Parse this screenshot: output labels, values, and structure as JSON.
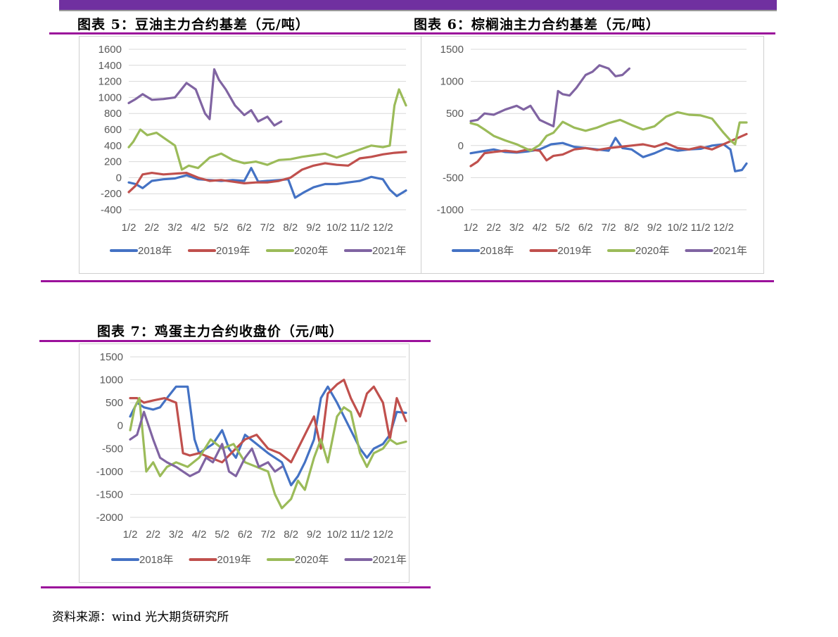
{
  "source": "资料来源：wind 光大期货研究所",
  "colors": {
    "2018": "#4472c4",
    "2019": "#c0504d",
    "2020": "#9bbb59",
    "2021": "#8064a2"
  },
  "chart_data": [
    {
      "id": "fig5",
      "type": "line",
      "title": "图表 5：豆油主力合约基差（元/吨）",
      "categories": [
        "1/2",
        "2/2",
        "3/2",
        "4/2",
        "5/2",
        "6/2",
        "7/2",
        "8/2",
        "9/2",
        "10/2",
        "11/2",
        "12/2"
      ],
      "ylim": [
        -400,
        1600
      ],
      "yticks": [
        1600,
        1400,
        1200,
        1000,
        800,
        600,
        400,
        200,
        0,
        -200,
        -400
      ],
      "grid": true,
      "legend": "bottom",
      "series": [
        {
          "name": "2018年",
          "x": [
            0,
            0.3,
            0.6,
            1,
            1.5,
            2,
            2.5,
            3,
            3.5,
            4,
            4.5,
            5,
            5.3,
            5.6,
            6,
            6.5,
            6.9,
            7.2,
            7.6,
            8,
            8.5,
            9,
            9.5,
            10,
            10.5,
            11,
            11.3,
            11.6,
            12
          ],
          "values": [
            -60,
            -80,
            -130,
            -40,
            -20,
            -10,
            30,
            -20,
            -30,
            -40,
            -30,
            -40,
            120,
            -50,
            -40,
            -30,
            -20,
            -250,
            -180,
            -120,
            -80,
            -80,
            -60,
            -40,
            10,
            -20,
            -150,
            -230,
            -160
          ]
        },
        {
          "name": "2019年",
          "x": [
            0,
            0.3,
            0.6,
            1,
            1.5,
            2,
            2.5,
            3,
            3.5,
            4,
            4.5,
            5,
            5.5,
            6,
            6.5,
            7,
            7.5,
            8,
            8.5,
            9,
            9.5,
            10,
            10.5,
            11,
            11.5,
            12
          ],
          "values": [
            -180,
            -100,
            40,
            60,
            40,
            50,
            60,
            0,
            -40,
            -30,
            -50,
            -70,
            -60,
            -60,
            -40,
            0,
            100,
            150,
            180,
            160,
            150,
            240,
            260,
            290,
            310,
            320
          ]
        },
        {
          "name": "2020年",
          "x": [
            0,
            0.2,
            0.5,
            0.8,
            1.2,
            1.6,
            2,
            2.3,
            2.6,
            3,
            3.5,
            4,
            4.5,
            5,
            5.5,
            6,
            6.5,
            7,
            7.5,
            8,
            8.5,
            9,
            9.5,
            10,
            10.5,
            11,
            11.3,
            11.5,
            11.7,
            12
          ],
          "values": [
            380,
            450,
            600,
            530,
            560,
            480,
            400,
            100,
            150,
            120,
            250,
            300,
            220,
            180,
            200,
            160,
            220,
            230,
            260,
            280,
            300,
            250,
            300,
            350,
            400,
            380,
            400,
            900,
            1100,
            900
          ]
        },
        {
          "name": "2021年",
          "x": [
            0,
            0.3,
            0.6,
            1,
            1.5,
            2,
            2.5,
            2.9,
            3.3,
            3.5,
            3.7,
            3.9,
            4.2,
            4.6,
            5,
            5.3,
            5.6,
            6,
            6.3,
            6.6
          ],
          "values": [
            930,
            980,
            1040,
            970,
            980,
            1000,
            1180,
            1100,
            800,
            730,
            1350,
            1220,
            1100,
            900,
            780,
            840,
            700,
            760,
            650,
            700
          ]
        }
      ]
    },
    {
      "id": "fig6",
      "type": "line",
      "title": "图表 6：棕榈油主力合约基差（元/吨）",
      "categories": [
        "1/2",
        "2/2",
        "3/2",
        "4/2",
        "5/2",
        "6/2",
        "7/2",
        "8/2",
        "9/2",
        "10/2",
        "11/2",
        "12/2"
      ],
      "ylim": [
        -1000,
        1500
      ],
      "yticks": [
        1500,
        1000,
        500,
        0,
        -500,
        -1000
      ],
      "grid": true,
      "legend": "bottom",
      "series": [
        {
          "name": "2018年",
          "x": [
            0,
            0.5,
            1,
            1.5,
            2,
            2.5,
            3,
            3.5,
            4,
            4.5,
            5,
            5.5,
            6,
            6.3,
            6.6,
            7,
            7.5,
            8,
            8.5,
            9,
            9.5,
            10,
            10.5,
            11,
            11.3,
            11.5,
            11.8,
            12
          ],
          "values": [
            -120,
            -90,
            -60,
            -100,
            -110,
            -90,
            -60,
            20,
            40,
            -20,
            -40,
            -60,
            -80,
            120,
            -40,
            -60,
            -180,
            -120,
            -40,
            -80,
            -60,
            -50,
            0,
            20,
            -60,
            -400,
            -380,
            -280
          ]
        },
        {
          "name": "2019年",
          "x": [
            0,
            0.3,
            0.6,
            1,
            1.5,
            2,
            2.5,
            3,
            3.3,
            3.6,
            4,
            4.5,
            5,
            5.5,
            6,
            6.5,
            7,
            7.5,
            8,
            8.5,
            9,
            9.5,
            10,
            10.5,
            11,
            11.5,
            12
          ],
          "values": [
            -320,
            -250,
            -120,
            -100,
            -80,
            -100,
            -60,
            -80,
            -230,
            -160,
            -140,
            -60,
            -40,
            -70,
            -40,
            -20,
            0,
            20,
            -20,
            40,
            -40,
            -60,
            -20,
            -60,
            20,
            100,
            180
          ]
        },
        {
          "name": "2020年",
          "x": [
            0,
            0.3,
            0.6,
            1,
            1.5,
            2,
            2.3,
            2.6,
            3,
            3.3,
            3.6,
            4,
            4.5,
            5,
            5.5,
            6,
            6.5,
            7,
            7.5,
            8,
            8.5,
            9,
            9.5,
            10,
            10.5,
            11,
            11.3,
            11.5,
            11.7,
            12
          ],
          "values": [
            350,
            320,
            250,
            150,
            80,
            20,
            -30,
            -80,
            10,
            150,
            200,
            370,
            280,
            230,
            280,
            350,
            400,
            320,
            250,
            300,
            450,
            520,
            480,
            470,
            420,
            200,
            80,
            20,
            360,
            360
          ]
        },
        {
          "name": "2021年",
          "x": [
            0,
            0.3,
            0.6,
            1,
            1.5,
            2,
            2.3,
            2.6,
            3,
            3.3,
            3.6,
            3.8,
            4,
            4.3,
            4.6,
            5,
            5.3,
            5.6,
            6,
            6.3,
            6.6,
            6.9
          ],
          "values": [
            380,
            400,
            500,
            480,
            560,
            620,
            560,
            620,
            400,
            350,
            300,
            850,
            800,
            780,
            900,
            1100,
            1150,
            1250,
            1200,
            1080,
            1100,
            1200
          ]
        }
      ]
    },
    {
      "id": "fig7",
      "type": "line",
      "title": "图表 7：鸡蛋主力合约收盘价（元/吨）",
      "categories": [
        "1/2",
        "2/2",
        "3/2",
        "4/2",
        "5/2",
        "6/2",
        "7/2",
        "8/2",
        "9/2",
        "10/2",
        "11/2",
        "12/2"
      ],
      "ylim": [
        -2000,
        1500
      ],
      "yticks": [
        1500,
        1000,
        500,
        0,
        -500,
        -1000,
        -1500,
        -2000
      ],
      "grid": true,
      "legend": "bottom",
      "series": [
        {
          "name": "2018年",
          "x": [
            0,
            0.3,
            0.6,
            1,
            1.3,
            1.6,
            2,
            2.5,
            2.8,
            3,
            3.3,
            3.6,
            4,
            4.3,
            4.6,
            5,
            5.5,
            6,
            6.3,
            6.6,
            7,
            7.3,
            7.6,
            8,
            8.3,
            8.6,
            9,
            9.3,
            9.6,
            10,
            10.3,
            10.6,
            11,
            11.3,
            11.6,
            12
          ],
          "values": [
            200,
            500,
            400,
            350,
            400,
            600,
            850,
            850,
            -300,
            -600,
            -500,
            -400,
            -100,
            -500,
            -700,
            -200,
            -400,
            -600,
            -700,
            -800,
            -1300,
            -1100,
            -800,
            -300,
            600,
            850,
            500,
            200,
            -100,
            -500,
            -700,
            -500,
            -400,
            -200,
            300,
            280
          ]
        },
        {
          "name": "2019年",
          "x": [
            0,
            0.3,
            0.6,
            1,
            1.5,
            2,
            2.3,
            2.6,
            3,
            3.5,
            4,
            4.5,
            5,
            5.5,
            6,
            6.5,
            7,
            7.5,
            8,
            8.3,
            8.6,
            9,
            9.3,
            9.6,
            10,
            10.3,
            10.6,
            11,
            11.3,
            11.6,
            12
          ],
          "values": [
            600,
            600,
            500,
            550,
            600,
            500,
            -600,
            -650,
            -600,
            -700,
            -800,
            -550,
            -300,
            -200,
            -500,
            -600,
            -800,
            -300,
            200,
            -500,
            700,
            900,
            1000,
            600,
            200,
            700,
            850,
            500,
            -300,
            600,
            100
          ]
        },
        {
          "name": "2020年",
          "x": [
            0,
            0.2,
            0.4,
            0.7,
            1,
            1.3,
            1.6,
            2,
            2.5,
            3,
            3.5,
            4,
            4.5,
            5,
            5.5,
            6,
            6.3,
            6.6,
            7,
            7.3,
            7.6,
            8,
            8.3,
            8.6,
            9,
            9.3,
            9.6,
            10,
            10.3,
            10.6,
            11,
            11.3,
            11.6,
            12
          ],
          "values": [
            -100,
            400,
            600,
            -1000,
            -800,
            -1100,
            -900,
            -800,
            -900,
            -700,
            -300,
            -500,
            -400,
            -800,
            -900,
            -1000,
            -1500,
            -1800,
            -1600,
            -1200,
            -1400,
            -700,
            -300,
            -800,
            200,
            400,
            300,
            -600,
            -900,
            -600,
            -500,
            -300,
            -400,
            -350
          ]
        },
        {
          "name": "2021年",
          "x": [
            0,
            0.3,
            0.6,
            1,
            1.3,
            1.6,
            2,
            2.3,
            2.6,
            3,
            3.3,
            3.6,
            4,
            4.3,
            4.6,
            5,
            5.3,
            5.6,
            6,
            6.3,
            6.6
          ],
          "values": [
            -300,
            -200,
            300,
            -300,
            -700,
            -800,
            -900,
            -1000,
            -1100,
            -1000,
            -700,
            -800,
            -400,
            -1000,
            -1100,
            -700,
            -500,
            -900,
            -800,
            -1000,
            -900
          ]
        }
      ]
    }
  ]
}
